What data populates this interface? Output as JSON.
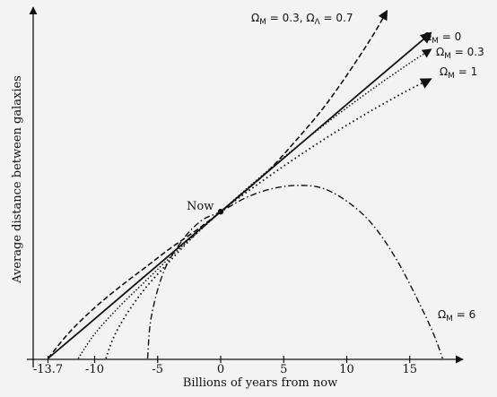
{
  "chart_data": {
    "type": "line",
    "title": "",
    "xlabel": "Billions of years from now",
    "ylabel": "Average distance between galaxies",
    "xlim": [
      -15,
      19
    ],
    "ylim": [
      0,
      1
    ],
    "x_ticks": [
      {
        "value": -13.7,
        "label": "-13.7"
      },
      {
        "value": -10,
        "label": "-10"
      },
      {
        "value": -5,
        "label": "-5"
      },
      {
        "value": 0,
        "label": "0"
      },
      {
        "value": 5,
        "label": "5"
      },
      {
        "value": 10,
        "label": "10"
      },
      {
        "value": 15,
        "label": "15"
      }
    ],
    "now_point": {
      "x": 0,
      "y": 0.42,
      "label": "Now"
    },
    "series": [
      {
        "name": "ΩM = 0.3, ΩΛ = 0.7",
        "label_parts": [
          "Ω",
          "M",
          " = 0.3, Ω",
          "Λ",
          " = 0.7"
        ],
        "style": "dashed",
        "x": [
          -13.7,
          -12,
          -10,
          -8,
          -6,
          -4,
          -2,
          0,
          2,
          4,
          6,
          8,
          10,
          12,
          13.2
        ],
        "y": [
          0.0,
          0.075,
          0.145,
          0.205,
          0.26,
          0.315,
          0.365,
          0.42,
          0.48,
          0.545,
          0.625,
          0.71,
          0.81,
          0.92,
          0.995
        ]
      },
      {
        "name": "ΩM = 0",
        "label_parts": [
          "Ω",
          "M",
          " = 0"
        ],
        "style": "solid",
        "x": [
          -13.7,
          -10,
          -5,
          0,
          5,
          10,
          15,
          16.7
        ],
        "y": [
          0.0,
          0.113,
          0.267,
          0.42,
          0.573,
          0.727,
          0.88,
          0.932
        ]
      },
      {
        "name": "ΩM = 0.3",
        "label_parts": [
          "Ω",
          "M",
          " = 0.3"
        ],
        "style": "dotted",
        "x": [
          -11.3,
          -10,
          -8,
          -6,
          -4,
          -2,
          0,
          3,
          6,
          9,
          12,
          15,
          16.7
        ],
        "y": [
          0.0,
          0.07,
          0.15,
          0.22,
          0.29,
          0.355,
          0.42,
          0.515,
          0.605,
          0.69,
          0.77,
          0.845,
          0.885
        ]
      },
      {
        "name": "ΩM = 1",
        "label_parts": [
          "Ω",
          "M",
          " = 1"
        ],
        "style": "dotted-sparse",
        "x": [
          -9.1,
          -8.5,
          -7.5,
          -6,
          -4,
          -2,
          0,
          3,
          6,
          9,
          12,
          15,
          16.7
        ],
        "y": [
          0.0,
          0.06,
          0.125,
          0.2,
          0.28,
          0.355,
          0.42,
          0.5,
          0.575,
          0.645,
          0.71,
          0.77,
          0.8
        ]
      },
      {
        "name": "ΩM = 6",
        "label_parts": [
          "Ω",
          "M",
          " = 6"
        ],
        "style": "dashdot",
        "x": [
          -5.8,
          -5.5,
          -4.5,
          -3,
          -1.5,
          0,
          2,
          4,
          6,
          8,
          10,
          12,
          14,
          16,
          17,
          17.6
        ],
        "y": [
          0.0,
          0.12,
          0.25,
          0.34,
          0.395,
          0.42,
          0.46,
          0.485,
          0.495,
          0.488,
          0.45,
          0.385,
          0.28,
          0.14,
          0.06,
          0.0
        ]
      }
    ]
  }
}
